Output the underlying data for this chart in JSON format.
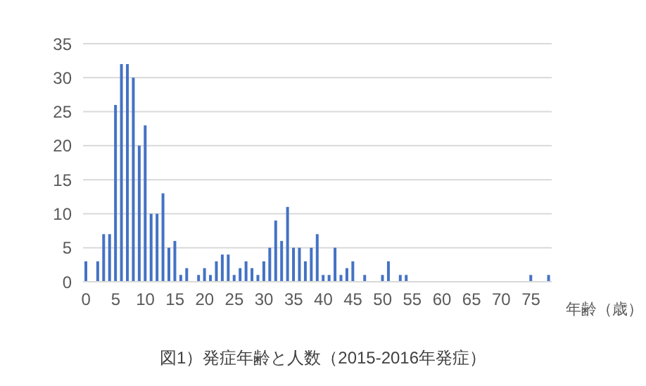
{
  "chart_data": {
    "type": "bar",
    "title": "図1）発症年齢と人数（2015-2016年発症）",
    "xlabel": "年齢（歳）",
    "categories": [
      "0",
      null,
      null,
      null,
      null,
      "5",
      null,
      null,
      null,
      null,
      "10",
      null,
      null,
      null,
      null,
      "15",
      null,
      null,
      null,
      null,
      "20",
      null,
      null,
      null,
      null,
      "25",
      null,
      null,
      null,
      null,
      "30",
      null,
      null,
      null,
      null,
      "35",
      null,
      null,
      null,
      null,
      "40",
      null,
      null,
      null,
      null,
      "45",
      null,
      null,
      null,
      null,
      "50",
      null,
      null,
      null,
      null,
      "55",
      null,
      null,
      null,
      null,
      "60",
      null,
      null,
      null,
      null,
      "65",
      null,
      null,
      null,
      null,
      "70",
      null,
      null,
      null,
      null,
      "75",
      null,
      null,
      null
    ],
    "values": [
      3,
      0,
      3,
      7,
      7,
      26,
      32,
      32,
      30,
      20,
      23,
      10,
      10,
      13,
      5,
      6,
      1,
      2,
      0,
      1,
      2,
      1,
      3,
      4,
      4,
      1,
      2,
      3,
      2,
      1,
      3,
      5,
      9,
      6,
      11,
      5,
      5,
      3,
      5,
      7,
      1,
      1,
      5,
      1,
      2,
      3,
      0,
      1,
      0,
      0,
      1,
      3,
      0,
      1,
      1,
      0,
      0,
      0,
      0,
      0,
      0,
      0,
      0,
      0,
      0,
      0,
      0,
      0,
      0,
      0,
      0,
      0,
      0,
      0,
      0,
      1,
      0,
      0,
      1
    ],
    "color": "#4472c4",
    "ylim": [
      0,
      35
    ],
    "yticks": [
      0,
      5,
      10,
      15,
      20,
      25,
      30,
      35
    ],
    "grid": "y",
    "legend": false
  }
}
